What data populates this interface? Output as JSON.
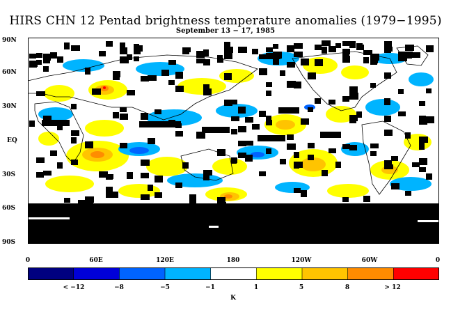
{
  "title": "HIRS CHN 12 Pentad brightness temperature anomalies (1979−1995)",
  "subtitle": "September 13 − 17, 1985",
  "y_axis_labels": [
    "90N",
    "60N",
    "30N",
    "EQ",
    "30S",
    "60S",
    "90S"
  ],
  "x_axis_labels": [
    "0",
    "60E",
    "120E",
    "180",
    "120W",
    "60W",
    "0"
  ],
  "colorbar": {
    "colors": [
      "#000080",
      "#0000d8",
      "#0064ff",
      "#00b4ff",
      "#ffffff",
      "#ffff00",
      "#ffc400",
      "#ff8c00",
      "#ff0000"
    ],
    "labels": [
      "< −12",
      "−8",
      "−5",
      "−1",
      "1",
      "5",
      "8",
      "> 12"
    ],
    "unit": "K"
  }
}
